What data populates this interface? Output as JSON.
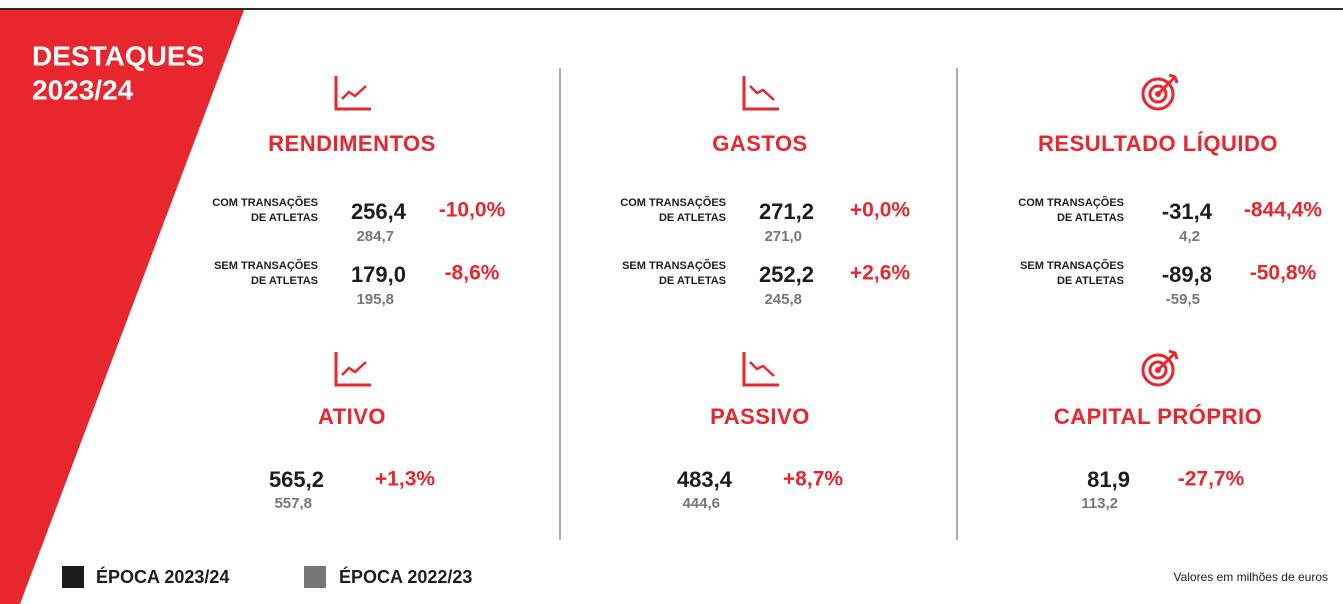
{
  "header": {
    "title_lines": [
      "DESTAQUES",
      "2023/24"
    ]
  },
  "columns": [
    {
      "top": {
        "title": "RENDIMENTOS",
        "rows": [
          {
            "label_lines": [
              "COM TRANSAÇÕES",
              "DE ATLETAS"
            ],
            "current": "256,4",
            "previous": "284,7",
            "change": "-10,0%"
          },
          {
            "label_lines": [
              "SEM TRANSAÇÕES",
              "DE ATLETAS"
            ],
            "current": "179,0",
            "previous": "195,8",
            "change": "-8,6%"
          }
        ]
      },
      "bottom": {
        "title": "ATIVO",
        "current": "565,2",
        "previous": "557,8",
        "change": "+1,3%"
      }
    },
    {
      "top": {
        "title": "GASTOS",
        "rows": [
          {
            "label_lines": [
              "COM TRANSAÇÕES",
              "DE ATLETAS"
            ],
            "current": "271,2",
            "previous": "271,0",
            "change": "+0,0%"
          },
          {
            "label_lines": [
              "SEM TRANSAÇÕES",
              "DE ATLETAS"
            ],
            "current": "252,2",
            "previous": "245,8",
            "change": "+2,6%"
          }
        ]
      },
      "bottom": {
        "title": "PASSIVO",
        "current": "483,4",
        "previous": "444,6",
        "change": "+8,7%"
      }
    },
    {
      "top": {
        "title": "RESULTADO LÍQUIDO",
        "rows": [
          {
            "label_lines": [
              "COM TRANSAÇÕES",
              "DE ATLETAS"
            ],
            "current": "-31,4",
            "previous": "4,2",
            "change": "-844,4%"
          },
          {
            "label_lines": [
              "SEM TRANSAÇÕES",
              "DE ATLETAS"
            ],
            "current": "-89,8",
            "previous": "-59,5",
            "change": "-50,8%"
          }
        ]
      },
      "bottom": {
        "title": "CAPITAL PRÓPRIO",
        "current": "81,9",
        "previous": "113,2",
        "change": "-27,7%"
      }
    }
  ],
  "legend": {
    "current": "ÉPOCA 2023/24",
    "previous": "ÉPOCA 2022/23"
  },
  "footnote": "Valores em milhões de euros"
}
